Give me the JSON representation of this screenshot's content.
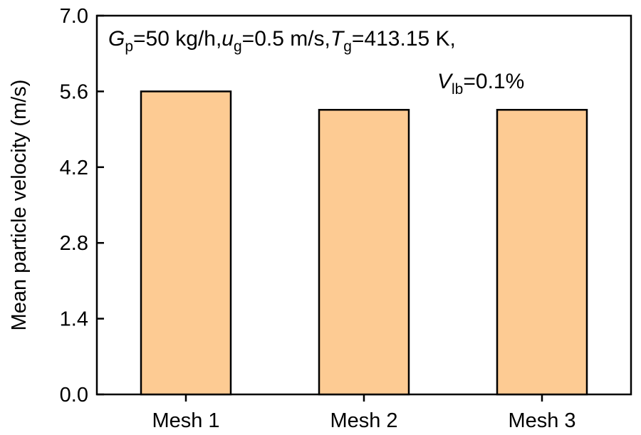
{
  "chart_data": {
    "type": "bar",
    "categories": [
      "Mesh 1",
      "Mesh 2",
      "Mesh 3"
    ],
    "values": [
      5.6,
      5.26,
      5.26
    ],
    "ylabel": "Mean particle velocity (m/s)",
    "xlabel": "",
    "ylim": [
      0,
      7.0
    ],
    "yticks": [
      "0.0",
      "1.4",
      "2.8",
      "4.2",
      "5.6",
      "7.0"
    ],
    "annotation": {
      "Gp_sym": "G",
      "Gp_sub": "p",
      "Gp_val": "=50 kg/h,",
      "ug_sym": "u",
      "ug_sub": "g",
      "ug_val": "=0.5 m/s,",
      "Tg_sym": "T",
      "Tg_sub": "g",
      "Tg_val": "=413.15 K,",
      "Vlb_sym": "V",
      "Vlb_sub": "lb",
      "Vlb_val": "=0.1%"
    },
    "colors": {
      "bar_fill": "#FDCB93",
      "bar_stroke": "#000000"
    },
    "grid": false,
    "legend": "none"
  }
}
